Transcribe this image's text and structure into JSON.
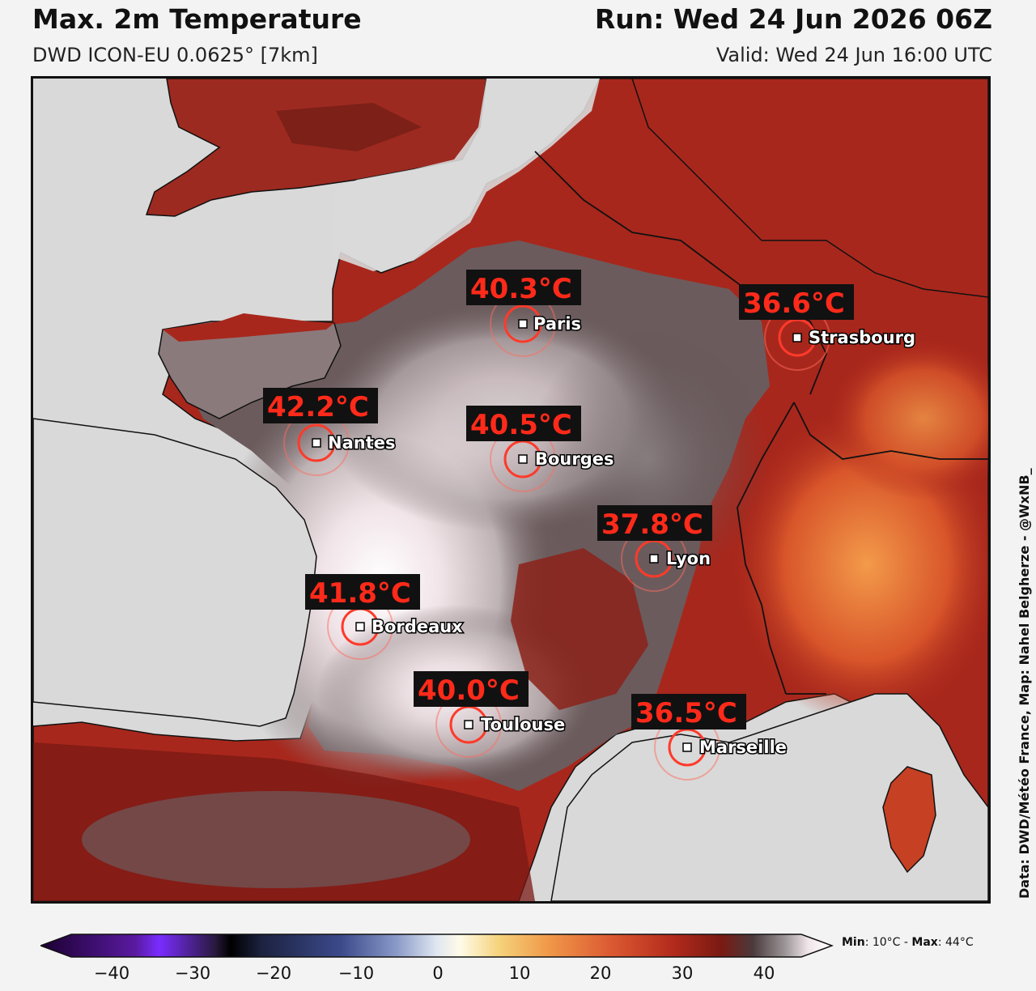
{
  "header": {
    "title": "Max. 2m Temperature",
    "model": "DWD ICON-EU 0.0625° [7km]",
    "run": "Run: Wed 24 Jun 2026 06Z",
    "valid": "Valid: Wed 24 Jun 16:00 UTC"
  },
  "credit": "Data: DWD/Météo France, Map: Nahel Belgherze - @WxNB_",
  "cities": [
    {
      "name": "Paris",
      "temp": "40.3°C"
    },
    {
      "name": "Strasbourg",
      "temp": "36.6°C"
    },
    {
      "name": "Nantes",
      "temp": "42.2°C"
    },
    {
      "name": "Bourges",
      "temp": "40.5°C"
    },
    {
      "name": "Lyon",
      "temp": "37.8°C"
    },
    {
      "name": "Bordeaux",
      "temp": "41.8°C"
    },
    {
      "name": "Toulouse",
      "temp": "40.0°C"
    },
    {
      "name": "Marseille",
      "temp": "36.5°C"
    }
  ],
  "colorbar": {
    "ticks": [
      "−40",
      "−30",
      "−20",
      "−10",
      "0",
      "10",
      "20",
      "30",
      "40"
    ],
    "min_label": "Min",
    "min_value": ": 10°C - ",
    "max_label": "Max",
    "max_value": ": 44°C"
  },
  "colors": {
    "hot_red": "#a8271c",
    "dark_red": "#7a1a14",
    "hottest": "#f4ecee",
    "sea": "#d9d9d9",
    "temp_label": "#ff2a1a"
  }
}
